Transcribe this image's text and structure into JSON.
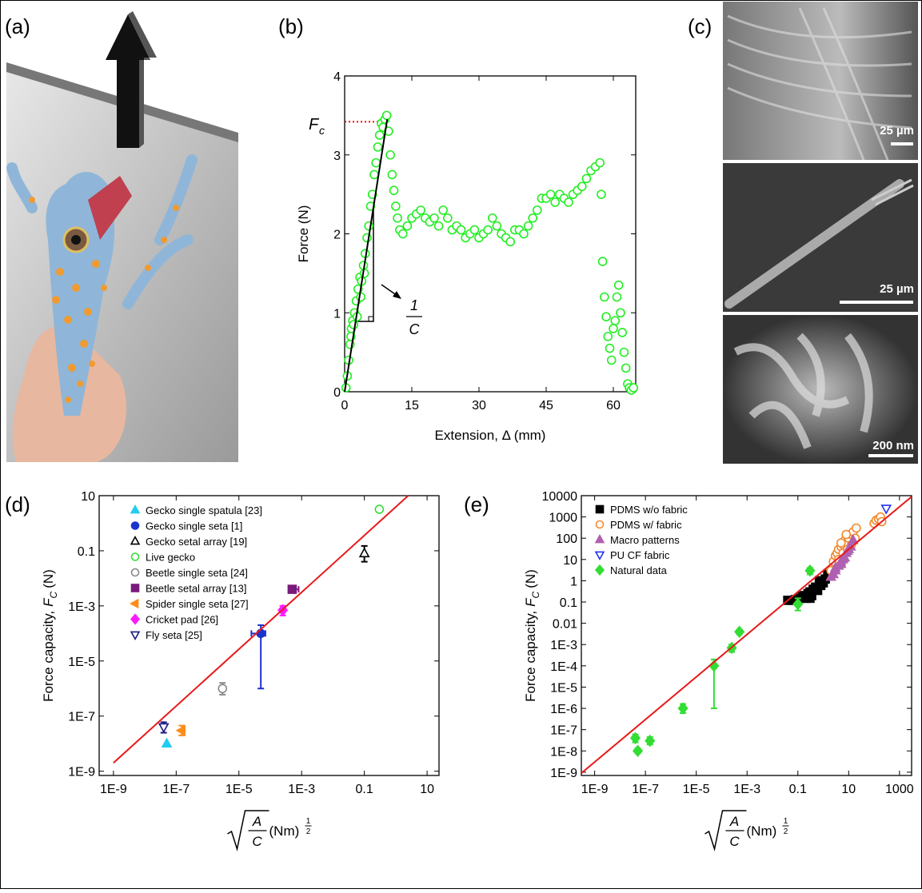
{
  "panel_labels": [
    "(a)",
    "(b)",
    "(c)",
    "(d)",
    "(e)"
  ],
  "scale_bars": [
    "25 µm",
    "25 µm",
    "200 nm"
  ],
  "chart_data": [
    {
      "type": "scatter",
      "x_label": "Extension, Δ (mm)",
      "y_label": "Force (N)",
      "annotations": {
        "force_symbol": "F",
        "force_subscript": "c",
        "slope_numerator": "1",
        "slope_denominator": "C"
      },
      "xlim": [
        0,
        65
      ],
      "ylim": [
        0,
        4
      ],
      "xticks": [
        0,
        15,
        30,
        45,
        60
      ],
      "yticks": [
        0,
        1,
        2,
        3,
        4
      ],
      "reference_line": {
        "y": 3.42,
        "x_range": [
          0,
          9
        ],
        "color": "#ff0000"
      },
      "series": [
        {
          "color": "#22ee22",
          "marker": "circle",
          "filled": false,
          "x": [
            0.3,
            0.6,
            0.9,
            1.2,
            1.5,
            1.8,
            2.2,
            2.6,
            3,
            3.4,
            3.8,
            4.2,
            4.6,
            5,
            5.4,
            5.8,
            6.2,
            6.6,
            7,
            7.4,
            7.8,
            8.2,
            8.6,
            9,
            9.4,
            9.8,
            10.2,
            10.6,
            11,
            11.4,
            11.8,
            12.3,
            13,
            14,
            15,
            16,
            17,
            18,
            19,
            20,
            21,
            22,
            23,
            24,
            25,
            26,
            27,
            28,
            29,
            30,
            31,
            32,
            33,
            34,
            35,
            36,
            37,
            38,
            39,
            40,
            41,
            42,
            43,
            44,
            45,
            46,
            47,
            48,
            49,
            50,
            51,
            52,
            53,
            54,
            55,
            56,
            57,
            57.3,
            57.6,
            58,
            58.4,
            58.8,
            59.2,
            59.6,
            60,
            60.4,
            60.8,
            61.2,
            61.6,
            62,
            62.4,
            62.8,
            63.2,
            63.6,
            64,
            64.5,
            1.4,
            2,
            2.8,
            3.6,
            4.4
          ],
          "values": [
            0.05,
            0.2,
            0.4,
            0.6,
            0.8,
            0.9,
            1.0,
            1.15,
            1.3,
            1.45,
            1.4,
            1.6,
            1.75,
            1.95,
            2.1,
            2.35,
            2.5,
            2.75,
            2.9,
            3.1,
            3.25,
            3.4,
            3.35,
            3.45,
            3.5,
            3.3,
            3.0,
            2.75,
            2.55,
            2.35,
            2.2,
            2.05,
            2.0,
            2.1,
            2.2,
            2.25,
            2.3,
            2.2,
            2.15,
            2.2,
            2.1,
            2.3,
            2.2,
            2.05,
            2.1,
            2.05,
            1.95,
            2.0,
            2.05,
            1.95,
            2.0,
            2.05,
            2.2,
            2.1,
            2.0,
            1.95,
            1.9,
            2.05,
            2.05,
            2.0,
            2.1,
            2.2,
            2.3,
            2.45,
            2.45,
            2.5,
            2.4,
            2.5,
            2.45,
            2.4,
            2.5,
            2.55,
            2.6,
            2.7,
            2.8,
            2.85,
            2.9,
            2.5,
            1.65,
            1.2,
            0.95,
            0.7,
            0.55,
            0.4,
            0.8,
            0.9,
            1.2,
            1.35,
            1.0,
            0.75,
            0.5,
            0.3,
            0.1,
            0.05,
            0.02,
            0.05,
            0.7,
            0.85,
            0.95,
            1.2,
            1.5
          ]
        },
        {
          "color": "#000000",
          "mode": "line",
          "x": [
            0,
            9.5
          ],
          "values": [
            0,
            3.45
          ]
        }
      ]
    },
    {
      "type": "scatter",
      "log_x": true,
      "log_y": true,
      "y_label": {
        "text": "Force capacity,",
        "symbol": "F",
        "subscript": "C",
        "unit": "(N)"
      },
      "x_label": {
        "numerator": "A",
        "denominator": "C",
        "unit": "(Nm)",
        "exponent_numerator": "1",
        "exponent_denominator": "2"
      },
      "xlim": [
        3.5e-10,
        24
      ],
      "ylim": [
        7e-10,
        10
      ],
      "xticks": [
        {
          "value": 1e-09,
          "label": "1E-9"
        },
        {
          "value": 1e-07,
          "label": "1E-7"
        },
        {
          "value": 1e-05,
          "label": "1E-5"
        },
        {
          "value": 0.001,
          "label": "1E-3"
        },
        0.1,
        10
      ],
      "yticks": [
        {
          "value": 1e-09,
          "label": "1E-9"
        },
        {
          "value": 1e-07,
          "label": "1E-7"
        },
        {
          "value": 1e-05,
          "label": "1E-5"
        },
        {
          "value": 0.001,
          "label": "1E-3"
        },
        0.1,
        10
      ],
      "series": [
        {
          "name": "Gecko single spatula [23]",
          "color": "#22ccee",
          "marker": "triangle-up",
          "filled": true,
          "x": [
            5e-08
          ],
          "values": [
            1e-08
          ]
        },
        {
          "name": "Gecko single seta [1]",
          "color": "#1a33cc",
          "marker": "circle",
          "filled": true,
          "x": [
            5e-05
          ],
          "values": [
            0.0001
          ],
          "y_low": [
            1e-06
          ],
          "y_high": [
            0.0002
          ],
          "x_low": [
            2.5e-05
          ],
          "x_high": [
            7e-05
          ]
        },
        {
          "name": "Gecko setal array [19]",
          "color": "#000000",
          "marker": "triangle-up",
          "filled": false,
          "x": [
            0.1
          ],
          "values": [
            0.08
          ],
          "y_low": [
            0.04
          ],
          "y_high": [
            0.15
          ]
        },
        {
          "name": "Live gecko",
          "color": "#33dd33",
          "marker": "circle",
          "filled": false,
          "x": [
            0.3
          ],
          "values": [
            3.2
          ]
        },
        {
          "name": "Beetle single seta [24]",
          "color": "#888888",
          "marker": "circle",
          "filled": false,
          "x": [
            3e-06
          ],
          "values": [
            1e-06
          ],
          "y_low": [
            6e-07
          ],
          "y_high": [
            1.6e-06
          ]
        },
        {
          "name": "Beetle setal array [13]",
          "color": "#7a1a7a",
          "marker": "square",
          "filled": true,
          "x": [
            0.0005
          ],
          "values": [
            0.004
          ],
          "y_low": [
            0.003
          ],
          "y_high": [
            0.005
          ],
          "x_low": [
            0.0004
          ],
          "x_high": [
            0.0008
          ]
        },
        {
          "name": "Spider single seta [27]",
          "color": "#ff8c1a",
          "marker": "triangle-left",
          "filled": true,
          "x": [
            1.5e-07
          ],
          "values": [
            3e-08
          ],
          "y_low": [
            2e-08
          ],
          "y_high": [
            4.5e-08
          ]
        },
        {
          "name": "Cricket pad [26]",
          "color": "#ff1aff",
          "marker": "diamond",
          "filled": true,
          "x": [
            0.00025
          ],
          "values": [
            0.0007
          ],
          "y_low": [
            0.00045
          ],
          "y_high": [
            0.001
          ]
        },
        {
          "name": "Fly seta [25]",
          "color": "#1a1a80",
          "marker": "triangle-down",
          "filled": false,
          "x": [
            4e-08
          ],
          "values": [
            4e-08
          ],
          "y_low": [
            2.5e-08
          ],
          "y_high": [
            6e-08
          ]
        },
        {
          "color": "#e8191a",
          "mode": "line",
          "x": [
            1e-09,
            2.5
          ],
          "values": [
            2e-09,
            10
          ]
        }
      ]
    },
    {
      "type": "scatter",
      "log_x": true,
      "log_y": true,
      "y_label": {
        "text": "Force capacity,",
        "symbol": "F",
        "subscript": "C",
        "unit": "(N)"
      },
      "x_label": {
        "numerator": "A",
        "denominator": "C",
        "unit": "(Nm)",
        "exponent_numerator": "1",
        "exponent_denominator": "2"
      },
      "xlim": [
        3e-10,
        3000
      ],
      "ylim": [
        7e-10,
        10000
      ],
      "xticks": [
        {
          "value": 1e-09,
          "label": "1E-9"
        },
        {
          "value": 1e-07,
          "label": "1E-7"
        },
        {
          "value": 1e-05,
          "label": "1E-5"
        },
        {
          "value": 0.001,
          "label": "1E-3"
        },
        0.1,
        10,
        1000
      ],
      "yticks": [
        {
          "value": 1e-09,
          "label": "1E-9"
        },
        {
          "value": 1e-08,
          "label": "1E-8"
        },
        {
          "value": 1e-07,
          "label": "1E-7"
        },
        {
          "value": 1e-06,
          "label": "1E-6"
        },
        {
          "value": 1e-05,
          "label": "1E-5"
        },
        {
          "value": 0.0001,
          "label": "1E-4"
        },
        {
          "value": 0.001,
          "label": "1E-3"
        },
        0.01,
        0.1,
        1,
        10,
        100,
        1000,
        10000
      ],
      "series": [
        {
          "name": "PDMS w/o fabric",
          "color": "#000000",
          "marker": "square",
          "filled": true,
          "x": [
            0.04,
            0.06,
            0.08,
            0.1,
            0.12,
            0.15,
            0.18,
            0.2,
            0.25,
            0.3,
            0.35,
            0.4,
            0.5,
            0.6,
            0.8,
            1,
            1.2,
            1.5,
            0.3,
            0.7
          ],
          "values": [
            0.12,
            0.12,
            0.13,
            0.12,
            0.15,
            0.18,
            0.2,
            0.15,
            0.25,
            0.3,
            0.2,
            0.4,
            0.5,
            0.35,
            0.6,
            0.8,
            1.2,
            2,
            0.15,
            1
          ]
        },
        {
          "name": "PDMS w/ fabric",
          "color": "#f08a30",
          "marker": "circle",
          "filled": false,
          "x": [
            2,
            2.5,
            3,
            3.5,
            4,
            5,
            6,
            7,
            8,
            10,
            12,
            15,
            4,
            6,
            9,
            13,
            18,
            20,
            100,
            120,
            150,
            180,
            200,
            5,
            8
          ],
          "values": [
            3,
            8,
            15,
            20,
            30,
            40,
            50,
            80,
            60,
            100,
            150,
            200,
            10,
            20,
            30,
            50,
            100,
            300,
            500,
            700,
            800,
            1000,
            600,
            60,
            150
          ]
        },
        {
          "name": "Macro patterns",
          "color": "#b060b0",
          "marker": "triangle-up",
          "filled": true,
          "x": [
            2,
            2.5,
            3,
            4,
            5,
            6,
            8,
            10,
            3,
            5,
            7,
            9,
            12,
            15
          ],
          "values": [
            1.5,
            2,
            3,
            5,
            8,
            10,
            20,
            30,
            4,
            6,
            12,
            25,
            40,
            80
          ]
        },
        {
          "name": "PU CF fabric",
          "color": "#2233ee",
          "marker": "triangle-down",
          "filled": false,
          "x": [
            300
          ],
          "values": [
            2500
          ]
        },
        {
          "name": "Natural data",
          "color": "#33dd33",
          "marker": "diamond",
          "filled": true,
          "x": [
            4e-08,
            5e-08,
            1.5e-07,
            3e-06,
            5e-05,
            0.00025,
            0.0005,
            0.1,
            0.3
          ],
          "values": [
            4e-08,
            1e-08,
            3e-08,
            1e-06,
            0.0001,
            0.0007,
            0.004,
            0.08,
            3
          ],
          "y_low": [
            2.5e-08,
            8e-09,
            2e-08,
            6e-07,
            1e-06,
            0.00045,
            0.003,
            0.04,
            2
          ],
          "y_high": [
            6e-08,
            1.3e-08,
            4.5e-08,
            1.6e-06,
            0.0002,
            0.001,
            0.005,
            0.15,
            4
          ]
        },
        {
          "color": "#e8191a",
          "mode": "line",
          "x": [
            3e-10,
            3000
          ],
          "values": [
            9e-10,
            9000
          ]
        }
      ]
    }
  ]
}
